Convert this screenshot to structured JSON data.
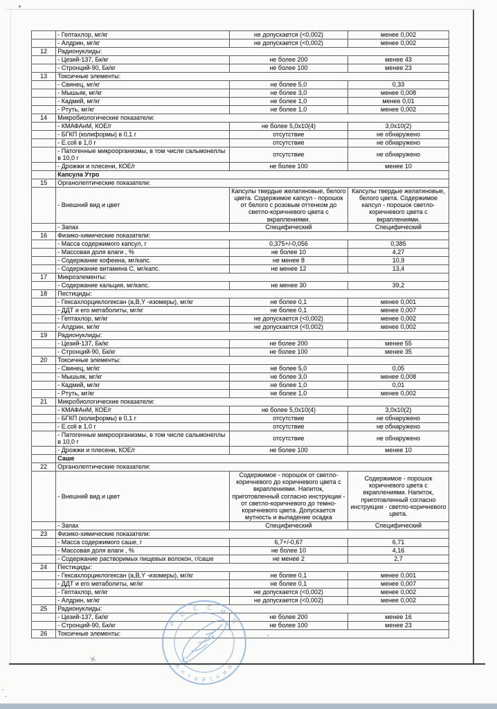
{
  "page": {
    "background": "#fbfbf9",
    "bottom_band_color": "#adbac7",
    "table_border_color": "#5c5c5c"
  },
  "table": {
    "rows": [
      {
        "type": "item",
        "name": "- Гептахлор,  мг/кг",
        "norm": "не допускается (<0,002)",
        "value": "менее 0,002"
      },
      {
        "type": "item",
        "name": "- Алдрин,  мг/кг",
        "norm": "не допускается (<0,002)",
        "value": "менее 0,002"
      },
      {
        "type": "sec",
        "num": "12",
        "name": "Радионуклиды:"
      },
      {
        "type": "item",
        "name": "- Цезий-137,  Бк/кг",
        "norm": "не более 200",
        "value": "менее 43"
      },
      {
        "type": "item",
        "name": "- Стронций-90,  Бк/кг",
        "norm": "не более 100",
        "value": "менее 23"
      },
      {
        "type": "sec",
        "num": "13",
        "name": "Токсичные элементы:"
      },
      {
        "type": "item",
        "name": "- Свинец,  мг/кг",
        "norm": "не более 5,0",
        "value": "0,33"
      },
      {
        "type": "item",
        "name": "- Мышьяк,  мг/кг",
        "norm": "не более 3,0",
        "value": "менее 0,008"
      },
      {
        "type": "item",
        "name": "- Кадмий,  мг/кг",
        "norm": "не более 1,0",
        "value": "менее 0,01"
      },
      {
        "type": "item",
        "name": "- Ртуть,  мг/кг",
        "norm": "не более 1,0",
        "value": "менее 0,002"
      },
      {
        "type": "sec",
        "num": "14",
        "name": "Микробиологические показатели:"
      },
      {
        "type": "item",
        "name": "- КМАФАнМ,  КОЕ/г",
        "norm": "не более 5,0x10(4)",
        "value": "3,0x10(2)"
      },
      {
        "type": "item",
        "name": "- БГКП (колиформы)   в 0,1 г",
        "norm": "отсутствие",
        "value": "не обнаружено"
      },
      {
        "type": "item",
        "name": "- E.coli   в 1,0 г",
        "norm": "отсутствие",
        "value": "не обнаружено"
      },
      {
        "type": "item",
        "name": "- Патогенные микроорганизмы, в том числе сальмонеллы   в 10,0 г",
        "norm": "отсутствие",
        "value": "не обнаружено"
      },
      {
        "type": "item",
        "name": "- Дрожжи и плесени,  КОЕ/г",
        "norm": "не более 100",
        "value": "менее 10"
      },
      {
        "type": "grp",
        "name": "Капсула Утро"
      },
      {
        "type": "sec",
        "num": "15",
        "name": "Органолептические показатели:"
      },
      {
        "type": "item",
        "name": "- Внешний вид и цвет",
        "norm": "Капсулы твердые желатиновые, белого  цвета. Содержимое капсул - порошок от белого с розовым оттенком до светло-коричневого цвета с вкраплениями.",
        "value": "Капсулы твердые желатиновые, белого  цвета. Содержимое капсул - порошок светло-коричневого  цвета с вкраплениями."
      },
      {
        "type": "item",
        "name": "- Запах",
        "norm": "Специфический",
        "value": "Специфический"
      },
      {
        "type": "sec",
        "num": "16",
        "name": "Физико-химические показатели:"
      },
      {
        "type": "item",
        "name": "- Масса содержимого капсул,  г",
        "norm": "0,375+/-0,056",
        "value": "0,385"
      },
      {
        "type": "item",
        "name": "- Массовая доля влаги ,  %",
        "norm": "не более 10",
        "value": "4,27"
      },
      {
        "type": "item",
        "name": "- Содержание кофеина,  мг/капс.",
        "norm": "не менее 8",
        "value": "10,9"
      },
      {
        "type": "item",
        "name": "- Содержание витамина С,  мг/капс.",
        "norm": "не менее 12",
        "value": "13,4"
      },
      {
        "type": "sec",
        "num": "17",
        "name": "Микроэлементы:"
      },
      {
        "type": "item",
        "name": "- Содержание кальция,  мг/капс.",
        "norm": "не менее 30",
        "value": "39,2"
      },
      {
        "type": "sec",
        "num": "18",
        "name": "Пестициды:"
      },
      {
        "type": "item",
        "name": "- Гексахлорциклогексан (а,В,Y -изомеры),  мг/кг",
        "norm": "не более 0,1",
        "value": "менее 0,001"
      },
      {
        "type": "item",
        "name": "- ДДТ и его метаболиты,  мг/кг",
        "norm": "не более 0,1",
        "value": "менее 0,007"
      },
      {
        "type": "item",
        "name": "- Гептахлор,  мг/кг",
        "norm": "не допускается (<0,002)",
        "value": "менее 0,002"
      },
      {
        "type": "item",
        "name": "- Алдрин,  мг/кг",
        "norm": "не допускается (<0,002)",
        "value": "менее 0,002"
      },
      {
        "type": "sec",
        "num": "19",
        "name": "Радионуклиды:"
      },
      {
        "type": "item",
        "name": "- Цезий-137,  Бк/кг",
        "norm": "не более 200",
        "value": "менее 55"
      },
      {
        "type": "item",
        "name": "- Стронций-90,  Бк/кг",
        "norm": "не более 100",
        "value": "менее 35"
      },
      {
        "type": "sec",
        "num": "20",
        "name": "Токсичные элементы:"
      },
      {
        "type": "item",
        "name": "- Свинец,  мг/кг",
        "norm": "не более 5,0",
        "value": "0,05"
      },
      {
        "type": "item",
        "name": "- Мышьяк,  мг/кг",
        "norm": "не более 3,0",
        "value": "менее 0,008"
      },
      {
        "type": "item",
        "name": "- Кадмий,  мг/кг",
        "norm": "не более 1,0",
        "value": "0,01"
      },
      {
        "type": "item",
        "name": "- Ртуть,  мг/кг",
        "norm": "не более 1,0",
        "value": "менее 0,002"
      },
      {
        "type": "sec",
        "num": "21",
        "name": "Микробиологические показатели:"
      },
      {
        "type": "item",
        "name": "- КМАФАнМ,  КОЕ/г",
        "norm": "не более 5,0x10(4)",
        "value": "3,0x10(2)"
      },
      {
        "type": "item",
        "name": "- БГКП (колиформы)   в 0,1 г",
        "norm": "отсутствие",
        "value": "не обнаружено"
      },
      {
        "type": "item",
        "name": "- E.coli   в 1,0 г",
        "norm": "отсутствие",
        "value": "не обнаружено"
      },
      {
        "type": "item",
        "name": "- Патогенные микроорганизмы, в том числе сальмонеллы   в 10,0 г",
        "norm": "отсутствие",
        "value": "не обнаружено"
      },
      {
        "type": "item",
        "name": "- Дрожжи и плесени,  КОЕ/г",
        "norm": "не более 100",
        "value": "менее 10"
      },
      {
        "type": "grp",
        "name": "Саше"
      },
      {
        "type": "sec",
        "num": "22",
        "name": "Органолептические показатели:"
      },
      {
        "type": "item",
        "name": "- Внешний вид и цвет",
        "norm": "Содержимое - порошок от светло-коричневого до коричневого цвета с вкраплениями. Напиток, приготовленный согласно инструкции - от светло-коричневого до темно-коричневого цвета. Допускается мутность и выпадение осадка",
        "value": "Содержимое - порошок коричневого цвета с вкраплениями. Напиток, приготовленный согласно инструкции -  светло-коричневого цвета."
      },
      {
        "type": "item",
        "name": "- Запах",
        "norm": "Специфический",
        "value": "Специфический"
      },
      {
        "type": "sec",
        "num": "23",
        "name": "Физико-химические показатели:"
      },
      {
        "type": "item",
        "name": "- Масса содержимого саше,  г",
        "norm": "6,7+/-0,67",
        "value": "6,71"
      },
      {
        "type": "item",
        "name": "- Массовая доля влаги ,  %",
        "norm": "не более 10",
        "value": "4,16"
      },
      {
        "type": "item",
        "name": "- Содержание растворимых пищевых волокон,  г/саше",
        "norm": "не менее 2",
        "value": "2,7"
      },
      {
        "type": "sec",
        "num": "24",
        "name": "Пестициды:"
      },
      {
        "type": "item",
        "name": "- Гексахлорциклогексан (а,В,Y -изомеры),  мг/кг",
        "norm": "не более 0,1",
        "value": "менее 0,001"
      },
      {
        "type": "item",
        "name": "- ДДТ и его метаболиты,  мг/кг",
        "norm": "не более 0,1",
        "value": "менее 0,007"
      },
      {
        "type": "item",
        "name": "- Гептахлор,  мг/кг",
        "norm": "не допускается (<0,002)",
        "value": "менее 0,002"
      },
      {
        "type": "item",
        "name": "- Алдрин,  мг/кг",
        "norm": "не допускается (<0,002)",
        "value": "менее 0,002"
      },
      {
        "type": "sec",
        "num": "25",
        "name": "Радионуклиды:"
      },
      {
        "type": "item",
        "name": "- Цезий-137,  Бк/кг",
        "norm": "не более 200",
        "value": "менее 16"
      },
      {
        "type": "item",
        "name": "- Стронций-90,  Бк/кг",
        "norm": "не более 100",
        "value": "менее 23"
      },
      {
        "type": "sec",
        "num": "26",
        "name": "Токсичные элементы:"
      }
    ]
  },
  "stamp": {
    "color": "#7fa7d3",
    "top_text": "Р  О  С  С  И  Я",
    "bottom_text": "А л т а й с к и й",
    "inner_text": "к п с"
  },
  "marks": {
    "corner_speck": "٭",
    "pen_mark": "×",
    "row26_mark": "”"
  }
}
